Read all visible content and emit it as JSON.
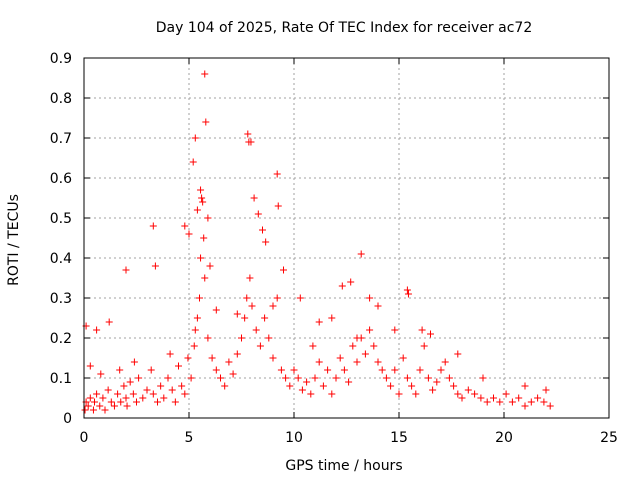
{
  "chart_data": {
    "type": "scatter",
    "title": "Day 104 of 2025, Rate Of TEC Index for receiver ac72",
    "xlabel": "GPS time / hours",
    "ylabel": "ROTI / TECUs",
    "xlim": [
      0,
      25
    ],
    "ylim": [
      0,
      0.9
    ],
    "xticks": [
      0,
      5,
      10,
      15,
      20,
      25
    ],
    "xtick_labels": [
      "0",
      "5",
      "10",
      "15",
      "20",
      "25"
    ],
    "yticks": [
      0,
      0.1,
      0.2,
      0.3,
      0.4,
      0.5,
      0.6,
      0.7,
      0.8,
      0.9
    ],
    "ytick_labels": [
      "0",
      "0.1",
      "0.2",
      "0.3",
      "0.4",
      "0.5",
      "0.6",
      "0.7",
      "0.8",
      "0.9"
    ],
    "grid": true,
    "marker": "+",
    "marker_color": "#ff0000",
    "series": [
      {
        "name": "ROTI",
        "x": [
          0.05,
          0.1,
          0.2,
          0.3,
          0.45,
          0.5,
          0.6,
          0.75,
          0.9,
          1.0,
          1.15,
          1.3,
          1.45,
          1.6,
          1.75,
          1.9,
          2.0,
          2.05,
          2.2,
          2.35,
          2.5,
          2.6,
          2.8,
          3.0,
          3.2,
          3.3,
          3.5,
          3.65,
          3.8,
          4.0,
          4.2,
          4.35,
          4.5,
          4.65,
          4.8,
          4.95,
          5.1,
          5.25,
          5.3,
          5.4,
          5.5,
          5.55,
          5.7,
          5.75,
          5.9,
          6.1,
          6.3,
          6.5,
          6.7,
          6.9,
          7.1,
          7.3,
          7.5,
          7.65,
          7.75,
          7.9,
          8.0,
          8.2,
          8.4,
          8.6,
          8.8,
          9.0,
          9.2,
          9.4,
          9.6,
          9.8,
          10.0,
          10.2,
          10.4,
          10.6,
          10.8,
          11.0,
          11.2,
          11.4,
          11.6,
          11.8,
          12.0,
          12.2,
          12.4,
          12.6,
          12.8,
          13.0,
          13.2,
          13.4,
          13.6,
          13.8,
          14.0,
          14.2,
          14.4,
          14.6,
          14.8,
          15.0,
          15.2,
          15.4,
          15.6,
          15.8,
          16.0,
          16.2,
          16.4,
          16.6,
          16.8,
          17.0,
          17.2,
          17.4,
          17.6,
          17.8,
          18.0,
          18.3,
          18.6,
          18.9,
          19.2,
          19.5,
          19.8,
          20.1,
          20.4,
          20.7,
          21.0,
          21.3,
          21.6,
          21.9,
          22.2,
          0.1,
          0.6,
          1.2,
          2.0,
          3.3,
          3.4,
          4.8,
          5.0,
          5.2,
          5.3,
          5.4,
          5.55,
          5.6,
          5.65,
          5.75,
          5.8,
          5.9,
          6.0,
          7.8,
          7.85,
          7.95,
          8.1,
          8.3,
          8.5,
          8.65,
          9.2,
          9.25,
          9.5,
          10.3,
          11.8,
          12.7,
          13.2,
          13.6,
          14.0,
          15.4,
          15.45,
          16.1,
          17.8,
          6.3,
          7.3,
          9.0,
          11.2,
          14.8,
          0.3,
          0.8,
          1.7,
          2.4,
          4.1,
          10.9,
          12.3,
          13.0,
          16.5,
          19.0,
          21.0,
          22.0
        ],
        "y": [
          0.02,
          0.04,
          0.03,
          0.05,
          0.02,
          0.04,
          0.06,
          0.03,
          0.05,
          0.02,
          0.07,
          0.04,
          0.03,
          0.06,
          0.04,
          0.08,
          0.05,
          0.03,
          0.09,
          0.06,
          0.04,
          0.1,
          0.05,
          0.07,
          0.12,
          0.06,
          0.04,
          0.08,
          0.05,
          0.1,
          0.07,
          0.04,
          0.13,
          0.08,
          0.06,
          0.15,
          0.1,
          0.18,
          0.22,
          0.25,
          0.3,
          0.4,
          0.45,
          0.35,
          0.2,
          0.15,
          0.12,
          0.1,
          0.08,
          0.14,
          0.11,
          0.16,
          0.2,
          0.25,
          0.3,
          0.35,
          0.28,
          0.22,
          0.18,
          0.25,
          0.2,
          0.15,
          0.3,
          0.12,
          0.1,
          0.08,
          0.12,
          0.1,
          0.07,
          0.09,
          0.06,
          0.1,
          0.14,
          0.08,
          0.12,
          0.06,
          0.1,
          0.15,
          0.12,
          0.09,
          0.18,
          0.14,
          0.2,
          0.16,
          0.22,
          0.18,
          0.14,
          0.12,
          0.1,
          0.08,
          0.12,
          0.06,
          0.15,
          0.1,
          0.08,
          0.06,
          0.12,
          0.18,
          0.1,
          0.07,
          0.09,
          0.12,
          0.14,
          0.1,
          0.08,
          0.06,
          0.05,
          0.07,
          0.06,
          0.05,
          0.04,
          0.05,
          0.04,
          0.06,
          0.04,
          0.05,
          0.03,
          0.04,
          0.05,
          0.04,
          0.03,
          0.23,
          0.22,
          0.24,
          0.37,
          0.48,
          0.38,
          0.48,
          0.46,
          0.64,
          0.7,
          0.52,
          0.57,
          0.55,
          0.54,
          0.86,
          0.74,
          0.5,
          0.38,
          0.71,
          0.69,
          0.69,
          0.55,
          0.51,
          0.47,
          0.44,
          0.61,
          0.53,
          0.37,
          0.3,
          0.25,
          0.34,
          0.41,
          0.3,
          0.28,
          0.32,
          0.31,
          0.22,
          0.16,
          0.27,
          0.26,
          0.28,
          0.24,
          0.22,
          0.13,
          0.11,
          0.12,
          0.14,
          0.16,
          0.18,
          0.33,
          0.2,
          0.21,
          0.1,
          0.08,
          0.07
        ]
      }
    ]
  }
}
